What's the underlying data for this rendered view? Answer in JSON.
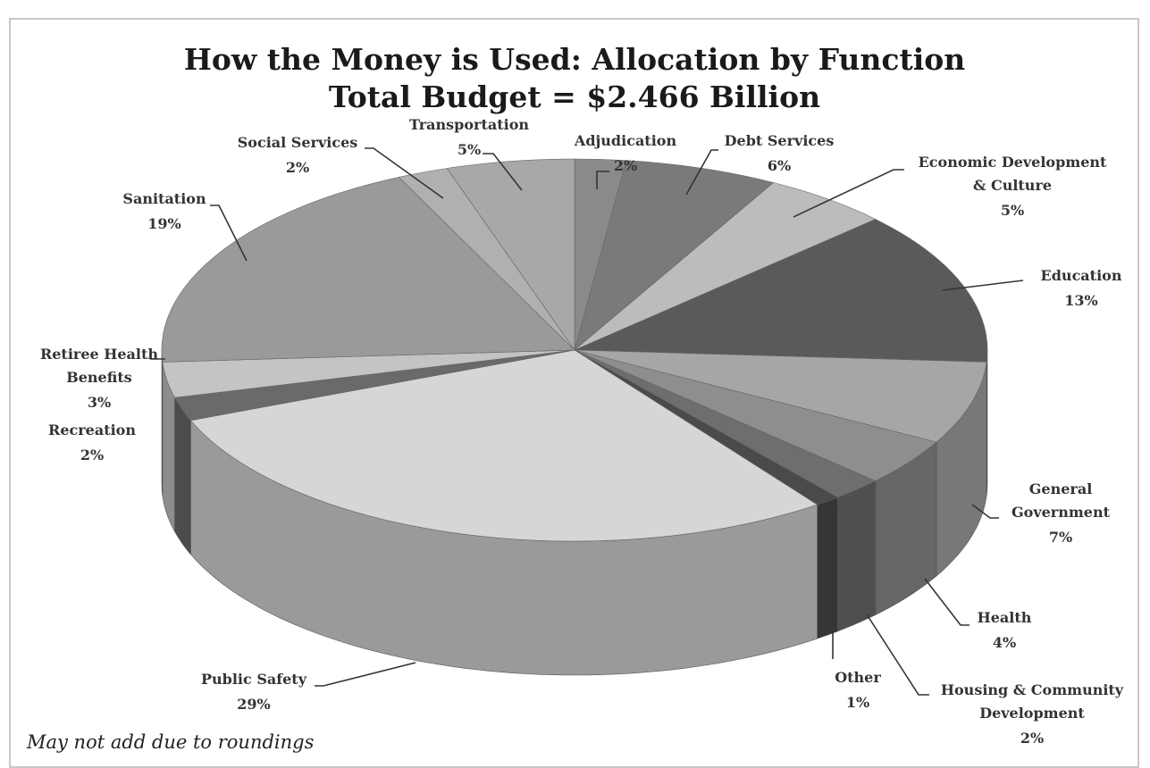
{
  "chart_data": {
    "type": "pie",
    "style": "3d",
    "title": "How the Money is Used: Allocation by Function",
    "subtitle": "Total Budget = $2.466 Billion",
    "note": "May not add due to roundings",
    "legend": "none",
    "slices": [
      {
        "label": "Adjudication",
        "value": 2,
        "display": "2%",
        "color": "#8a8a8a"
      },
      {
        "label": "Debt Services",
        "value": 6,
        "display": "6%",
        "color": "#7a7a7a"
      },
      {
        "label": "Economic Development & Culture",
        "label_lines": [
          "Economic Development",
          "& Culture"
        ],
        "value": 5,
        "display": "5%",
        "color": "#bcbcbc"
      },
      {
        "label": "Education",
        "value": 13,
        "display": "13%",
        "color": "#5a5a5a"
      },
      {
        "label": "General Government",
        "label_lines": [
          "General",
          "Government"
        ],
        "value": 7,
        "display": "7%",
        "color": "#a6a6a6"
      },
      {
        "label": "Health",
        "value": 4,
        "display": "4%",
        "color": "#8e8e8e"
      },
      {
        "label": "Housing & Community Development",
        "label_lines": [
          "Housing & Community",
          "Development"
        ],
        "value": 2,
        "display": "2%",
        "color": "#6e6e6e"
      },
      {
        "label": "Other",
        "value": 1,
        "display": "1%",
        "color": "#4a4a4a"
      },
      {
        "label": "Public Safety",
        "value": 29,
        "display": "29%",
        "color": "#d6d6d6"
      },
      {
        "label": "Recreation",
        "value": 2,
        "display": "2%",
        "color": "#6a6a6a"
      },
      {
        "label": "Retiree Health Benefits",
        "label_lines": [
          "Retiree Health",
          "Benefits"
        ],
        "value": 3,
        "display": "3%",
        "color": "#c4c4c4"
      },
      {
        "label": "Sanitation",
        "value": 19,
        "display": "19%",
        "color": "#9a9a9a"
      },
      {
        "label": "Social Services",
        "value": 2,
        "display": "2%",
        "color": "#b0b0b0"
      },
      {
        "label": "Transportation",
        "value": 5,
        "display": "5%",
        "color": "#a8a8a8"
      }
    ]
  }
}
